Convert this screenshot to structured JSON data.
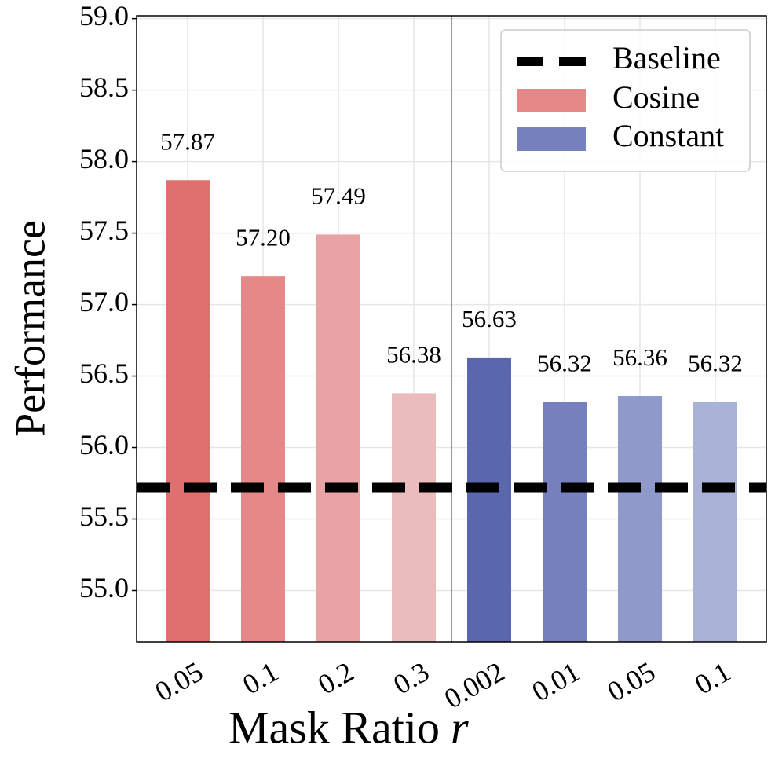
{
  "chart_data": {
    "type": "bar",
    "xlabel": "Mask Ratio",
    "xlabel_var": "r",
    "ylabel": "Performance",
    "categories": [
      "0.05",
      "0.1",
      "0.2",
      "0.3",
      "0.002",
      "0.01",
      "0.05",
      "0.1"
    ],
    "series": [
      {
        "name": "Cosine",
        "color": "#e48888",
        "colors": [
          "#e07070",
          "#e48888",
          "#e8a4a4",
          "#eabcbc",
          null,
          null,
          null,
          null
        ],
        "values": [
          57.87,
          57.2,
          57.49,
          56.38,
          null,
          null,
          null,
          null
        ],
        "value_labels": [
          "57.87",
          "57.20",
          "57.49",
          "56.38",
          null,
          null,
          null,
          null
        ]
      },
      {
        "name": "Constant",
        "color": "#7580bd",
        "colors": [
          null,
          null,
          null,
          null,
          "#5a66ae",
          "#7580bd",
          "#909aca",
          "#aab2d8"
        ],
        "values": [
          null,
          null,
          null,
          null,
          56.63,
          56.32,
          56.36,
          56.32
        ],
        "value_labels": [
          null,
          null,
          null,
          null,
          "56.63",
          "56.32",
          "56.36",
          "56.32"
        ]
      }
    ],
    "baseline": {
      "name": "Baseline",
      "value": 55.72,
      "color": "#000000"
    },
    "ylim": [
      54.64,
      59.02
    ],
    "yticks": [
      {
        "value": 55,
        "label": "55.0"
      },
      55.5,
      {
        "value": 56,
        "label": "56.0"
      },
      56.5,
      {
        "value": 57,
        "label": "57.0"
      },
      57.5,
      {
        "value": 58,
        "label": "58.0"
      },
      58.5,
      {
        "value": 59,
        "label": "59.0"
      }
    ],
    "grid": true,
    "legend": "upper right"
  }
}
